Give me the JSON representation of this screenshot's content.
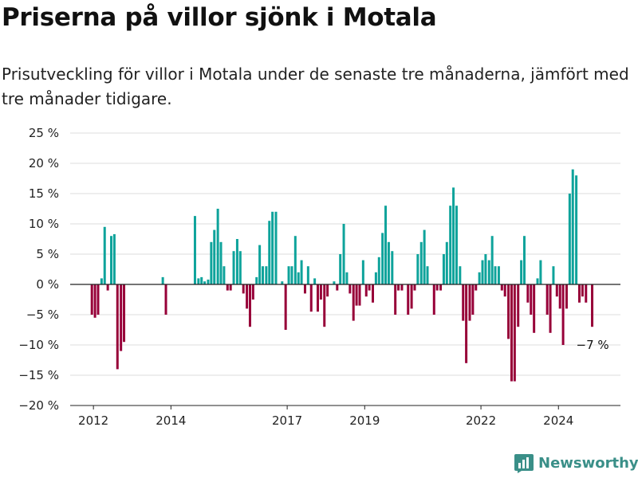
{
  "title": "Priserna på villor sjönk i Motala",
  "subtitle": "Prisutveckling för villor i Motala under de senaste tre månaderna, jämfört med tre månader tidigare.",
  "brand": "Newsworthy",
  "colors": {
    "positive": "#0ea39b",
    "negative": "#970038",
    "grid": "#dedede",
    "axis": "#222222",
    "brand": "#3a8f88"
  },
  "chart_data": {
    "type": "bar",
    "annotation": "−7 %",
    "ylim": [
      -20,
      25
    ],
    "yticks": [
      -20,
      -15,
      -10,
      -5,
      0,
      5,
      10,
      15,
      20,
      25
    ],
    "ytick_labels": [
      "−20 %",
      "−15 %",
      "−10 %",
      "−5 %",
      "0 %",
      "5 %",
      "10 %",
      "15 %",
      "20 %",
      "25 %"
    ],
    "xticks": [
      2012,
      2014,
      2017,
      2019,
      2022,
      2024
    ],
    "xlim": [
      2011.4,
      2025.6
    ],
    "values": [
      {
        "x": 2011.96,
        "v": -5.0
      },
      {
        "x": 2012.04,
        "v": -5.5
      },
      {
        "x": 2012.12,
        "v": -5.0
      },
      {
        "x": 2012.21,
        "v": 1.0
      },
      {
        "x": 2012.29,
        "v": 9.5
      },
      {
        "x": 2012.37,
        "v": -1.0
      },
      {
        "x": 2012.46,
        "v": 8.0
      },
      {
        "x": 2012.54,
        "v": 8.3
      },
      {
        "x": 2012.62,
        "v": -14.0
      },
      {
        "x": 2012.71,
        "v": -11.0
      },
      {
        "x": 2012.79,
        "v": -9.5
      },
      {
        "x": 2013.79,
        "v": 1.2
      },
      {
        "x": 2013.87,
        "v": -5.0
      },
      {
        "x": 2014.62,
        "v": 11.3
      },
      {
        "x": 2014.71,
        "v": 1.0
      },
      {
        "x": 2014.79,
        "v": 1.2
      },
      {
        "x": 2014.87,
        "v": 0.5
      },
      {
        "x": 2014.96,
        "v": 0.8
      },
      {
        "x": 2015.04,
        "v": 7.0
      },
      {
        "x": 2015.12,
        "v": 9.0
      },
      {
        "x": 2015.21,
        "v": 12.5
      },
      {
        "x": 2015.29,
        "v": 7.0
      },
      {
        "x": 2015.37,
        "v": 3.0
      },
      {
        "x": 2015.46,
        "v": -1.0
      },
      {
        "x": 2015.54,
        "v": -1.0
      },
      {
        "x": 2015.62,
        "v": 5.5
      },
      {
        "x": 2015.71,
        "v": 7.5
      },
      {
        "x": 2015.79,
        "v": 5.5
      },
      {
        "x": 2015.87,
        "v": -1.5
      },
      {
        "x": 2015.96,
        "v": -4.0
      },
      {
        "x": 2016.04,
        "v": -7.0
      },
      {
        "x": 2016.12,
        "v": -2.5
      },
      {
        "x": 2016.21,
        "v": 1.2
      },
      {
        "x": 2016.29,
        "v": 6.5
      },
      {
        "x": 2016.37,
        "v": 3.0
      },
      {
        "x": 2016.46,
        "v": 3.0
      },
      {
        "x": 2016.54,
        "v": 10.5
      },
      {
        "x": 2016.62,
        "v": 12.0
      },
      {
        "x": 2016.71,
        "v": 12.0
      },
      {
        "x": 2016.87,
        "v": 0.5
      },
      {
        "x": 2016.96,
        "v": -7.5
      },
      {
        "x": 2017.04,
        "v": 3.0
      },
      {
        "x": 2017.12,
        "v": 3.0
      },
      {
        "x": 2017.21,
        "v": 8.0
      },
      {
        "x": 2017.29,
        "v": 2.0
      },
      {
        "x": 2017.37,
        "v": 4.0
      },
      {
        "x": 2017.46,
        "v": -1.5
      },
      {
        "x": 2017.54,
        "v": 3.0
      },
      {
        "x": 2017.62,
        "v": -4.5
      },
      {
        "x": 2017.71,
        "v": 1.0
      },
      {
        "x": 2017.79,
        "v": -4.5
      },
      {
        "x": 2017.87,
        "v": -2.5
      },
      {
        "x": 2017.96,
        "v": -7.0
      },
      {
        "x": 2018.04,
        "v": -2.0
      },
      {
        "x": 2018.21,
        "v": 0.5
      },
      {
        "x": 2018.29,
        "v": -1.0
      },
      {
        "x": 2018.37,
        "v": 5.0
      },
      {
        "x": 2018.46,
        "v": 10.0
      },
      {
        "x": 2018.54,
        "v": 2.0
      },
      {
        "x": 2018.62,
        "v": -1.5
      },
      {
        "x": 2018.71,
        "v": -6.0
      },
      {
        "x": 2018.79,
        "v": -3.5
      },
      {
        "x": 2018.87,
        "v": -3.5
      },
      {
        "x": 2018.96,
        "v": 4.0
      },
      {
        "x": 2019.04,
        "v": -2.0
      },
      {
        "x": 2019.12,
        "v": -1.0
      },
      {
        "x": 2019.21,
        "v": -3.0
      },
      {
        "x": 2019.29,
        "v": 2.0
      },
      {
        "x": 2019.37,
        "v": 4.5
      },
      {
        "x": 2019.46,
        "v": 8.5
      },
      {
        "x": 2019.54,
        "v": 13.0
      },
      {
        "x": 2019.62,
        "v": 7.0
      },
      {
        "x": 2019.71,
        "v": 5.5
      },
      {
        "x": 2019.79,
        "v": -5.0
      },
      {
        "x": 2019.87,
        "v": -1.0
      },
      {
        "x": 2019.96,
        "v": -1.0
      },
      {
        "x": 2020.12,
        "v": -5.0
      },
      {
        "x": 2020.21,
        "v": -4.0
      },
      {
        "x": 2020.29,
        "v": -1.0
      },
      {
        "x": 2020.37,
        "v": 5.0
      },
      {
        "x": 2020.46,
        "v": 7.0
      },
      {
        "x": 2020.54,
        "v": 9.0
      },
      {
        "x": 2020.62,
        "v": 3.0
      },
      {
        "x": 2020.79,
        "v": -5.0
      },
      {
        "x": 2020.87,
        "v": -1.0
      },
      {
        "x": 2020.96,
        "v": -1.0
      },
      {
        "x": 2021.04,
        "v": 5.0
      },
      {
        "x": 2021.12,
        "v": 7.0
      },
      {
        "x": 2021.21,
        "v": 13.0
      },
      {
        "x": 2021.29,
        "v": 16.0
      },
      {
        "x": 2021.37,
        "v": 13.0
      },
      {
        "x": 2021.46,
        "v": 3.0
      },
      {
        "x": 2021.54,
        "v": -6.0
      },
      {
        "x": 2021.62,
        "v": -13.0
      },
      {
        "x": 2021.71,
        "v": -6.0
      },
      {
        "x": 2021.79,
        "v": -5.0
      },
      {
        "x": 2021.87,
        "v": -1.0
      },
      {
        "x": 2021.96,
        "v": 2.0
      },
      {
        "x": 2022.04,
        "v": 4.0
      },
      {
        "x": 2022.12,
        "v": 5.0
      },
      {
        "x": 2022.21,
        "v": 4.0
      },
      {
        "x": 2022.29,
        "v": 8.0
      },
      {
        "x": 2022.37,
        "v": 3.0
      },
      {
        "x": 2022.46,
        "v": 3.0
      },
      {
        "x": 2022.54,
        "v": -1.0
      },
      {
        "x": 2022.62,
        "v": -2.0
      },
      {
        "x": 2022.71,
        "v": -9.0
      },
      {
        "x": 2022.79,
        "v": -16.0
      },
      {
        "x": 2022.87,
        "v": -16.0
      },
      {
        "x": 2022.96,
        "v": -7.0
      },
      {
        "x": 2023.04,
        "v": 4.0
      },
      {
        "x": 2023.12,
        "v": 8.0
      },
      {
        "x": 2023.21,
        "v": -3.0
      },
      {
        "x": 2023.29,
        "v": -5.0
      },
      {
        "x": 2023.37,
        "v": -8.0
      },
      {
        "x": 2023.46,
        "v": 1.0
      },
      {
        "x": 2023.54,
        "v": 4.0
      },
      {
        "x": 2023.71,
        "v": -5.0
      },
      {
        "x": 2023.79,
        "v": -8.0
      },
      {
        "x": 2023.87,
        "v": 3.0
      },
      {
        "x": 2023.96,
        "v": -2.0
      },
      {
        "x": 2024.04,
        "v": -4.0
      },
      {
        "x": 2024.12,
        "v": -10.0
      },
      {
        "x": 2024.21,
        "v": -4.0
      },
      {
        "x": 2024.29,
        "v": 15.0
      },
      {
        "x": 2024.37,
        "v": 19.0
      },
      {
        "x": 2024.46,
        "v": 18.0
      },
      {
        "x": 2024.54,
        "v": -3.0
      },
      {
        "x": 2024.62,
        "v": -2.0
      },
      {
        "x": 2024.71,
        "v": -3.0
      },
      {
        "x": 2024.87,
        "v": -7.0
      }
    ]
  }
}
